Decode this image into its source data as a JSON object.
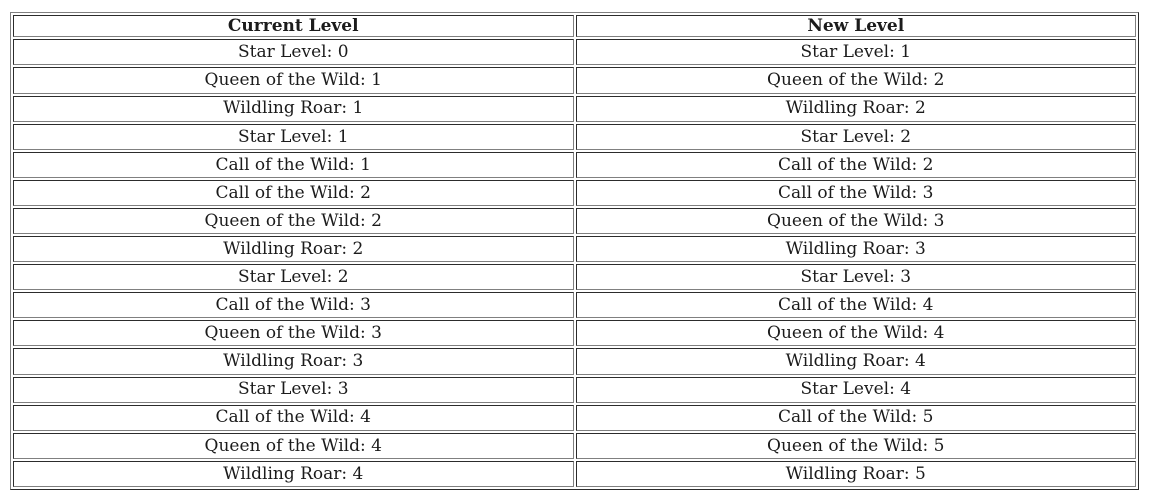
{
  "colors": {
    "background": "#ffffff",
    "border": "#808080",
    "text": "#1b1b1b"
  },
  "table": {
    "headers": [
      "Current Level",
      "New Level"
    ],
    "rows": [
      [
        "Star Level: 0",
        "Star Level: 1"
      ],
      [
        "Queen of the Wild: 1",
        "Queen of the Wild: 2"
      ],
      [
        "Wildling Roar: 1",
        "Wildling Roar: 2"
      ],
      [
        "Star Level: 1",
        "Star Level: 2"
      ],
      [
        "Call of the Wild: 1",
        "Call of the Wild: 2"
      ],
      [
        "Call of the Wild: 2",
        "Call of the Wild: 3"
      ],
      [
        "Queen of the Wild: 2",
        "Queen of the Wild: 3"
      ],
      [
        "Wildling Roar: 2",
        "Wildling Roar: 3"
      ],
      [
        "Star Level: 2",
        "Star Level: 3"
      ],
      [
        "Call of the Wild: 3",
        "Call of the Wild: 4"
      ],
      [
        "Queen of the Wild: 3",
        "Queen of the Wild: 4"
      ],
      [
        "Wildling Roar: 3",
        "Wildling Roar: 4"
      ],
      [
        "Star Level: 3",
        "Star Level: 4"
      ],
      [
        "Call of the Wild: 4",
        "Call of the Wild: 5"
      ],
      [
        "Queen of the Wild: 4",
        "Queen of the Wild: 5"
      ],
      [
        "Wildling Roar: 4",
        "Wildling Roar: 5"
      ]
    ]
  }
}
